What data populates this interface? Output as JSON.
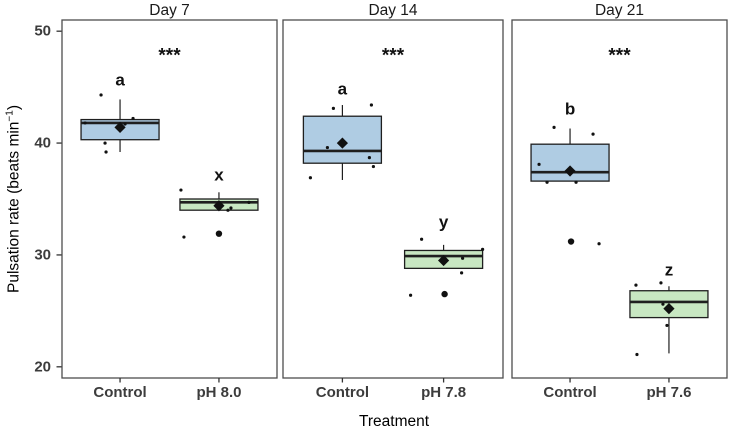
{
  "chart_data": {
    "type": "box",
    "xlabel": "Treatment",
    "ylabel": {
      "pre": "Pulsation rate (beats min",
      "sup": "−1",
      "post": ")"
    },
    "ylim": [
      19,
      51
    ],
    "yticks": [
      20,
      30,
      40,
      50
    ],
    "grid": false,
    "legend": "none",
    "colors": {
      "control": "#AFCCE3",
      "treatment": "#C8E7C2",
      "box_border": "#1f1f1f",
      "median": "#1f1f1f",
      "panel_border": "#4d4d4d",
      "axis_line": "#333333",
      "point": "#111111",
      "text": "#000000",
      "axis_text": "#3c3c3c"
    },
    "panels": [
      {
        "title": "Day 7",
        "significance": "***",
        "sig_y": 48.1,
        "groups": [
          {
            "label": "Control",
            "color_key": "control",
            "letter": "a",
            "letter_y": 45.6,
            "stats": {
              "whisker_low": 39.2,
              "q1": 40.3,
              "median": 41.8,
              "q3": 42.1,
              "whisker_high": 43.9,
              "mean": 41.4
            },
            "outliers": [],
            "points": [
              {
                "dx": -19,
                "v": 44.3
              },
              {
                "dx": -35,
                "v": 41.8
              },
              {
                "dx": 13,
                "v": 42.2
              },
              {
                "dx": 5,
                "v": 41.7
              },
              {
                "dx": -15,
                "v": 40.0
              },
              {
                "dx": -14,
                "v": 39.2
              }
            ]
          },
          {
            "label": "pH 8.0",
            "color_key": "treatment",
            "letter": "x",
            "letter_y": 37.1,
            "stats": {
              "whisker_low": 34.0,
              "q1": 34.0,
              "median": 34.7,
              "q3": 35.0,
              "whisker_high": 35.6,
              "mean": 34.4
            },
            "outliers": [
              {
                "dx": 0,
                "v": 31.9
              }
            ],
            "points": [
              {
                "dx": -38,
                "v": 35.8
              },
              {
                "dx": 30,
                "v": 34.7
              },
              {
                "dx": 12,
                "v": 34.2
              },
              {
                "dx": 9,
                "v": 34.0
              },
              {
                "dx": -35,
                "v": 31.6
              }
            ]
          }
        ]
      },
      {
        "title": "Day 14",
        "significance": "***",
        "sig_y": 48.1,
        "groups": [
          {
            "label": "Control",
            "color_key": "control",
            "letter": "a",
            "letter_y": 44.8,
            "stats": {
              "whisker_low": 36.7,
              "q1": 38.2,
              "median": 39.3,
              "q3": 42.4,
              "whisker_high": 43.4,
              "mean": 40.0
            },
            "outliers": [],
            "points": [
              {
                "dx": 29,
                "v": 43.4
              },
              {
                "dx": -9,
                "v": 43.1
              },
              {
                "dx": -15,
                "v": 39.6
              },
              {
                "dx": 27,
                "v": 38.7
              },
              {
                "dx": 31,
                "v": 37.9
              },
              {
                "dx": -32,
                "v": 36.9
              }
            ]
          },
          {
            "label": "pH 7.8",
            "color_key": "treatment",
            "letter": "y",
            "letter_y": 32.9,
            "stats": {
              "whisker_low": 28.8,
              "q1": 28.8,
              "median": 29.9,
              "q3": 30.4,
              "whisker_high": 30.9,
              "mean": 29.5
            },
            "outliers": [
              {
                "dx": 1,
                "v": 26.5
              }
            ],
            "points": [
              {
                "dx": -22,
                "v": 31.4
              },
              {
                "dx": 39,
                "v": 30.5
              },
              {
                "dx": 19,
                "v": 29.7
              },
              {
                "dx": 18,
                "v": 28.4
              },
              {
                "dx": -33,
                "v": 26.4
              }
            ]
          }
        ]
      },
      {
        "title": "Day 21",
        "significance": "***",
        "sig_y": 48.1,
        "groups": [
          {
            "label": "Control",
            "color_key": "control",
            "letter": "b",
            "letter_y": 43.0,
            "stats": {
              "whisker_low": 36.6,
              "q1": 36.6,
              "median": 37.4,
              "q3": 39.9,
              "whisker_high": 41.3,
              "mean": 37.5
            },
            "outliers": [
              {
                "dx": 1,
                "v": 31.2
              }
            ],
            "points": [
              {
                "dx": -16,
                "v": 41.4
              },
              {
                "dx": 23,
                "v": 40.8
              },
              {
                "dx": -31,
                "v": 38.1
              },
              {
                "dx": -23,
                "v": 36.5
              },
              {
                "dx": 6,
                "v": 36.5
              },
              {
                "dx": 29,
                "v": 31.0
              }
            ]
          },
          {
            "label": "pH 7.6",
            "color_key": "treatment",
            "letter": "z",
            "letter_y": 28.6,
            "stats": {
              "whisker_low": 21.2,
              "q1": 24.4,
              "median": 25.8,
              "q3": 26.8,
              "whisker_high": 27.2,
              "mean": 25.2
            },
            "outliers": [],
            "points": [
              {
                "dx": -8,
                "v": 27.5
              },
              {
                "dx": -33,
                "v": 27.3
              },
              {
                "dx": -6,
                "v": 25.6
              },
              {
                "dx": -2,
                "v": 23.7
              },
              {
                "dx": -32,
                "v": 21.1
              }
            ]
          }
        ]
      }
    ]
  }
}
